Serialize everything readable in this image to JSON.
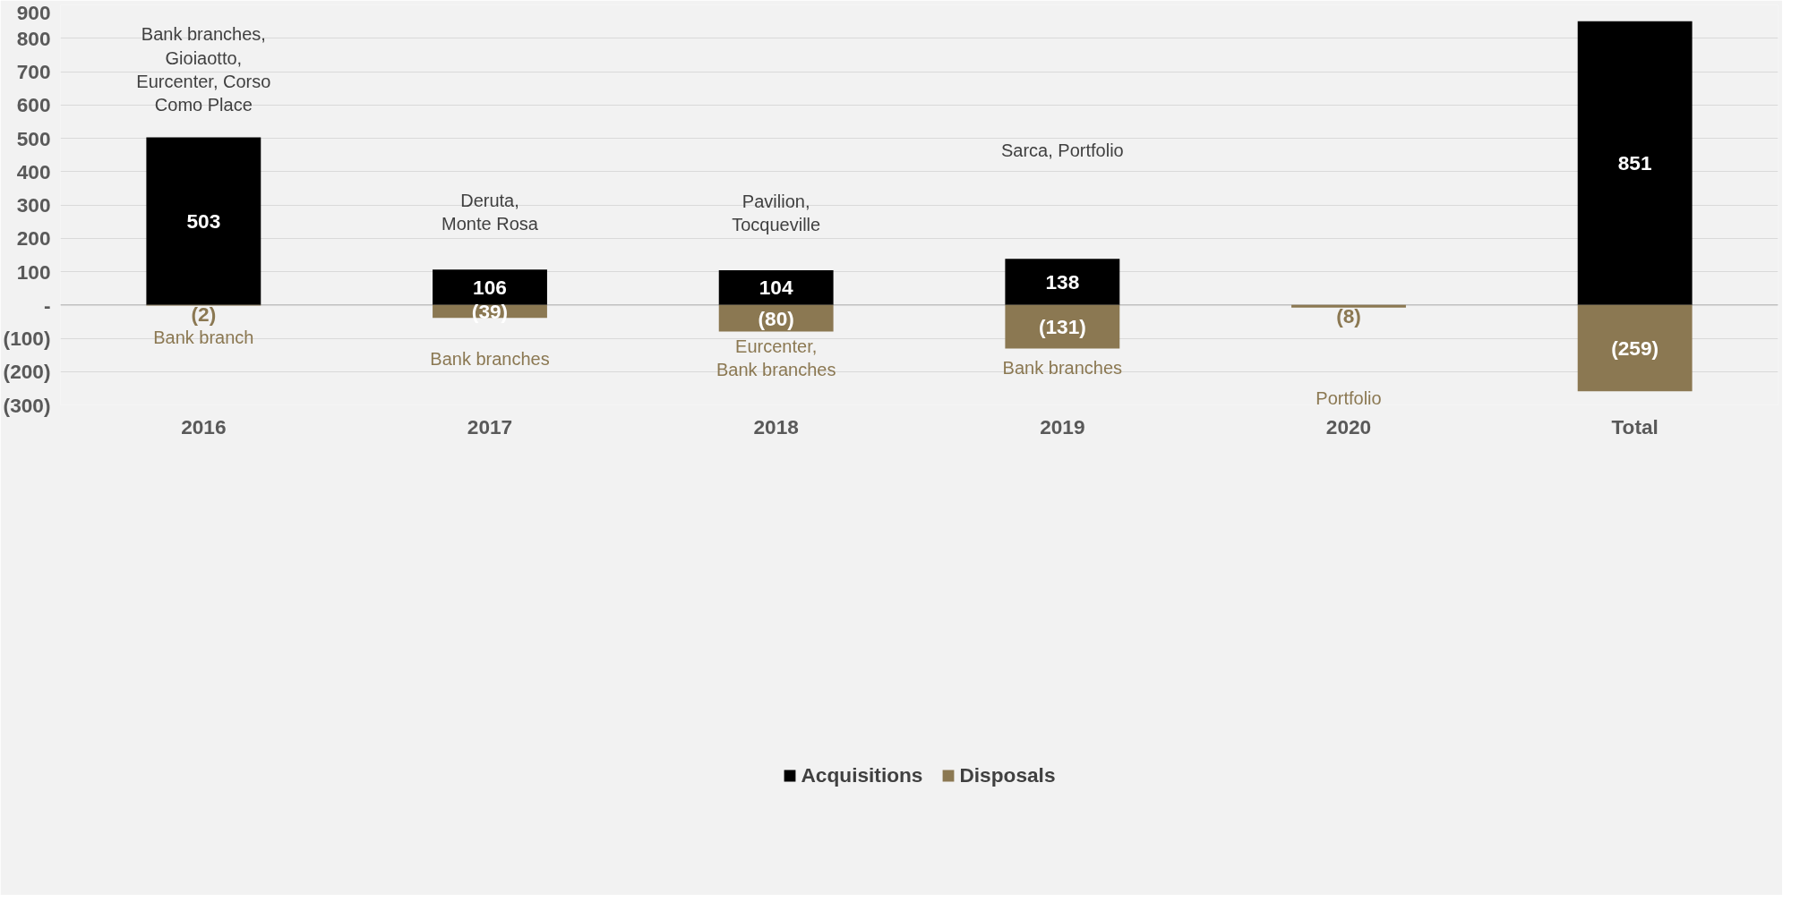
{
  "chart_data": {
    "type": "bar",
    "stacked": true,
    "categories": [
      "2016",
      "2017",
      "2018",
      "2019",
      "2020",
      "Total"
    ],
    "series": [
      {
        "name": "Acquisitions",
        "color": "#000000",
        "values": [
          503,
          106,
          104,
          138,
          null,
          851
        ],
        "value_labels": [
          "503",
          "106",
          "104",
          "138",
          null,
          "851"
        ]
      },
      {
        "name": "Disposals",
        "color": "#8b7852",
        "values": [
          -2,
          -39,
          -80,
          -131,
          -8,
          -259
        ],
        "value_labels": [
          "(2)",
          "(39)",
          "(80)",
          "(131)",
          "(8)",
          "(259)"
        ]
      }
    ],
    "ylim": [
      -300,
      900
    ],
    "yticks": [
      {
        "value": -300,
        "label": "(300)"
      },
      {
        "value": -200,
        "label": "(200)"
      },
      {
        "value": -100,
        "label": "(100)"
      },
      {
        "value": 0,
        "label": "-"
      },
      100,
      200,
      300,
      400,
      500,
      600,
      700,
      800,
      900
    ],
    "grid": "y",
    "legend": "bottom",
    "annotations": [
      "Bank branches,\nGioiaotto,\nEurcenter, Corso\nComo Place",
      "Deruta,\nMonte Rosa",
      "Pavilion,\nTocqueville",
      "Sarca, Portfolio",
      "Bank branch",
      "Bank branches",
      "Eurcenter,\nBank branches",
      "Bank branches",
      "Portfolio"
    ]
  }
}
